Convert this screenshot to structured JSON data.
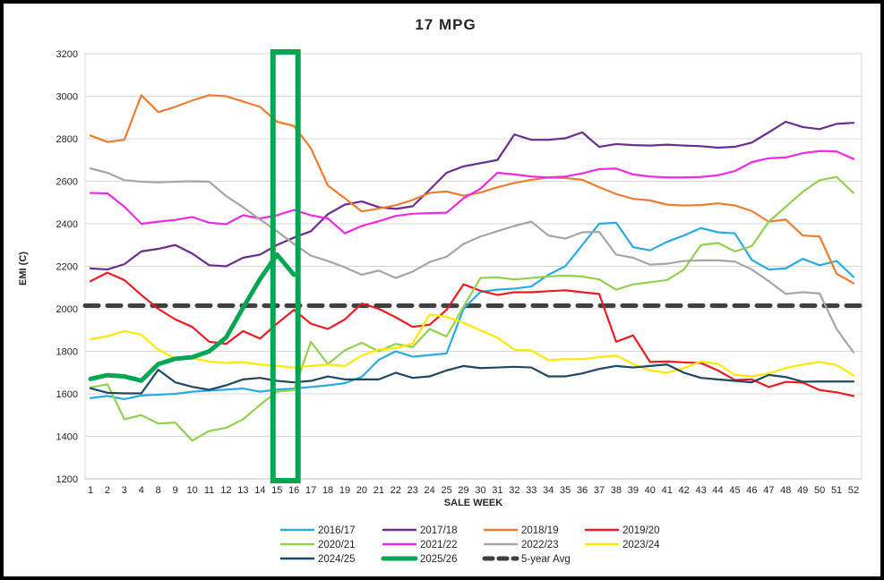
{
  "chart_data": {
    "type": "line",
    "title": "17 MPG",
    "xlabel": "SALE WEEK",
    "ylabel": "EMI (C)",
    "ylim": [
      1200,
      3200
    ],
    "yticks": [
      1200,
      1400,
      1600,
      1800,
      2000,
      2200,
      2400,
      2600,
      2800,
      3000,
      3200
    ],
    "grid": "horizontal",
    "legend_position": "bottom",
    "categories": [
      "1",
      "2",
      "3",
      "4",
      "8",
      "9",
      "10",
      "11",
      "12",
      "13",
      "14",
      "15",
      "16",
      "17",
      "18",
      "19",
      "20",
      "21",
      "22",
      "23",
      "24",
      "25",
      "29",
      "30",
      "31",
      "32",
      "33",
      "34",
      "35",
      "36",
      "37",
      "38",
      "39",
      "40",
      "41",
      "42",
      "43",
      "44",
      "45",
      "46",
      "47",
      "48",
      "49",
      "50",
      "51",
      "52"
    ],
    "series": [
      {
        "name": "2016/17",
        "color": "#29ABE2",
        "width": 2.2,
        "values": [
          1580,
          1590,
          1575,
          1592,
          1596,
          1600,
          1610,
          1615,
          1620,
          1625,
          1610,
          1620,
          1625,
          1632,
          1640,
          1650,
          1680,
          1760,
          1800,
          1775,
          1782,
          1790,
          2000,
          2080,
          2090,
          2095,
          2105,
          2160,
          2200,
          2300,
          2400,
          2405,
          2290,
          2275,
          2315,
          2345,
          2380,
          2360,
          2355,
          2230,
          2185,
          2190,
          2235,
          2205,
          2225,
          2150
        ]
      },
      {
        "name": "2017/18",
        "color": "#6A2D91",
        "width": 2.2,
        "values": [
          2190,
          2185,
          2210,
          2270,
          2282,
          2300,
          2260,
          2205,
          2200,
          2240,
          2255,
          2300,
          2335,
          2365,
          2445,
          2490,
          2505,
          2478,
          2470,
          2482,
          2560,
          2640,
          2670,
          2685,
          2700,
          2820,
          2795,
          2795,
          2802,
          2830,
          2762,
          2775,
          2770,
          2768,
          2772,
          2768,
          2765,
          2758,
          2762,
          2782,
          2830,
          2880,
          2855,
          2845,
          2870,
          2875
        ]
      },
      {
        "name": "2018/19",
        "color": "#ED7D31",
        "width": 2.2,
        "values": [
          2815,
          2785,
          2795,
          3005,
          2925,
          2950,
          2980,
          3005,
          3000,
          2975,
          2950,
          2880,
          2860,
          2755,
          2580,
          2520,
          2458,
          2472,
          2487,
          2512,
          2545,
          2552,
          2532,
          2547,
          2572,
          2592,
          2607,
          2617,
          2615,
          2607,
          2572,
          2540,
          2517,
          2510,
          2490,
          2486,
          2488,
          2496,
          2486,
          2460,
          2410,
          2420,
          2345,
          2340,
          2165,
          2120
        ]
      },
      {
        "name": "2019/20",
        "color": "#ED1C24",
        "width": 2.2,
        "values": [
          2130,
          2170,
          2135,
          2065,
          2000,
          1950,
          1915,
          1845,
          1835,
          1895,
          1860,
          1930,
          1995,
          1930,
          1905,
          1950,
          2025,
          2000,
          1960,
          1915,
          1925,
          1995,
          2115,
          2085,
          2065,
          2078,
          2078,
          2083,
          2087,
          2078,
          2070,
          1845,
          1875,
          1750,
          1752,
          1748,
          1745,
          1710,
          1665,
          1668,
          1632,
          1656,
          1653,
          1618,
          1607,
          1590
        ]
      },
      {
        "name": "2020/21",
        "color": "#92D050",
        "width": 2.2,
        "values": [
          1630,
          1645,
          1480,
          1500,
          1460,
          1465,
          1380,
          1425,
          1440,
          1480,
          1548,
          1610,
          1618,
          1845,
          1740,
          1805,
          1840,
          1800,
          1835,
          1820,
          1905,
          1870,
          2010,
          2145,
          2148,
          2138,
          2145,
          2152,
          2156,
          2152,
          2138,
          2090,
          2115,
          2125,
          2135,
          2185,
          2300,
          2310,
          2270,
          2295,
          2410,
          2480,
          2550,
          2605,
          2620,
          2545
        ]
      },
      {
        "name": "2021/22",
        "color": "#F02BE0",
        "width": 2.2,
        "values": [
          2545,
          2543,
          2480,
          2400,
          2410,
          2418,
          2432,
          2405,
          2398,
          2440,
          2425,
          2440,
          2465,
          2440,
          2425,
          2355,
          2390,
          2412,
          2437,
          2447,
          2450,
          2452,
          2520,
          2565,
          2640,
          2632,
          2622,
          2618,
          2622,
          2637,
          2657,
          2660,
          2632,
          2622,
          2618,
          2618,
          2620,
          2628,
          2648,
          2690,
          2708,
          2712,
          2732,
          2742,
          2740,
          2705
        ]
      },
      {
        "name": "2022/23",
        "color": "#A6A6A6",
        "width": 2.2,
        "values": [
          2660,
          2640,
          2605,
          2598,
          2595,
          2598,
          2600,
          2598,
          2530,
          2478,
          2420,
          2365,
          2305,
          2250,
          2225,
          2195,
          2160,
          2180,
          2145,
          2175,
          2220,
          2245,
          2305,
          2340,
          2365,
          2390,
          2410,
          2345,
          2330,
          2360,
          2362,
          2255,
          2240,
          2208,
          2212,
          2225,
          2228,
          2228,
          2222,
          2185,
          2130,
          2070,
          2078,
          2072,
          1905,
          1795
        ]
      },
      {
        "name": "2023/24",
        "color": "#FFE900",
        "width": 2.2,
        "values": [
          1857,
          1871,
          1895,
          1878,
          1808,
          1766,
          1769,
          1752,
          1745,
          1749,
          1738,
          1731,
          1724,
          1731,
          1738,
          1731,
          1780,
          1808,
          1815,
          1836,
          1973,
          1962,
          1934,
          1899,
          1864,
          1808,
          1804,
          1759,
          1763,
          1763,
          1773,
          1780,
          1741,
          1710,
          1699,
          1721,
          1752,
          1741,
          1689,
          1682,
          1696,
          1721,
          1738,
          1750,
          1735,
          1686
        ]
      },
      {
        "name": "2024/25",
        "color": "#1F4861",
        "width": 2.2,
        "values": [
          1626,
          1605,
          1602,
          1602,
          1713,
          1654,
          1633,
          1619,
          1640,
          1668,
          1675,
          1661,
          1654,
          1661,
          1682,
          1668,
          1668,
          1668,
          1699,
          1675,
          1682,
          1710,
          1731,
          1721,
          1724,
          1727,
          1724,
          1682,
          1682,
          1696,
          1717,
          1731,
          1724,
          1731,
          1738,
          1699,
          1675,
          1668,
          1661,
          1654,
          1689,
          1679,
          1657,
          1658,
          1658,
          1658
        ]
      },
      {
        "name": "2025/26",
        "color": "#00A651",
        "width": 5,
        "values": [
          1670,
          1688,
          1682,
          1662,
          1740,
          1765,
          1772,
          1800,
          1865,
          2005,
          2140,
          2255,
          2160
        ]
      },
      {
        "name": "5-year Avg",
        "color": "#404040",
        "width": 5,
        "dash": "15 10",
        "constant": 2015
      }
    ],
    "highlight_box": {
      "from_week": "15",
      "to_week": "16",
      "color": "#00A651"
    }
  }
}
